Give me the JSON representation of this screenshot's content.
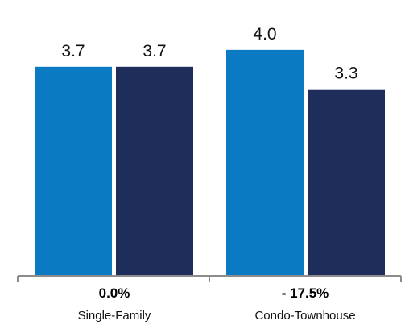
{
  "chart_data": {
    "type": "bar",
    "categories": [
      "Single-Family",
      "Condo-Townhouse"
    ],
    "change_labels": [
      "0.0%",
      "- 17.5%"
    ],
    "series": [
      {
        "values": [
          3.7,
          4.0
        ],
        "color": "#0a7ac3"
      },
      {
        "values": [
          3.7,
          3.3
        ],
        "color": "#1f2d5a"
      }
    ],
    "value_labels": [
      [
        "3.7",
        "4.0"
      ],
      [
        "3.7",
        "3.3"
      ]
    ],
    "ylim": [
      0,
      4.6
    ],
    "axis_color": "#8c8c8c",
    "grid": false,
    "legend": "none"
  }
}
